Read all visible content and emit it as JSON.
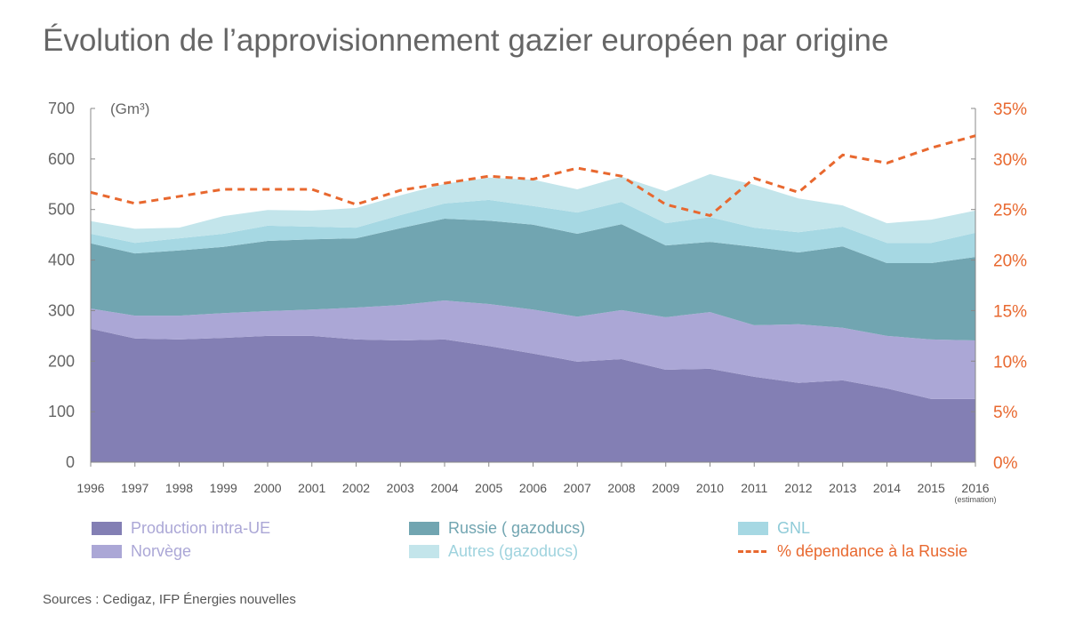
{
  "title": "Évolution de l’approvisionnement gazier européen par origine",
  "sources": "Sources : Cedigaz, IFP Énergies nouvelles",
  "chart_data": {
    "type": "area",
    "stacked": true,
    "title": "Évolution de l’approvisionnement gazier européen par origine",
    "ylabel": "(Gm³)",
    "ylim": [
      0,
      700
    ],
    "yticks": [
      "0",
      "100",
      "200",
      "300",
      "400",
      "500",
      "600",
      "700"
    ],
    "y2lim": [
      0,
      35
    ],
    "y2ticks": [
      "0%",
      "5%",
      "10%",
      "15%",
      "20%",
      "25%",
      "30%",
      "35%"
    ],
    "grid": false,
    "legend_position": "bottom",
    "categories": [
      "1996",
      "1997",
      "1998",
      "1999",
      "2000",
      "2001",
      "2002",
      "2003",
      "2004",
      "2005",
      "2006",
      "2007",
      "2008",
      "2009",
      "2010",
      "2011",
      "2012",
      "2013",
      "2014",
      "2015",
      "2016"
    ],
    "last_category_note": "(estimation)",
    "series": [
      {
        "name": "Production intra-UE",
        "color": "#837fb4",
        "values": [
          264,
          245,
          243,
          246,
          250,
          250,
          243,
          241,
          243,
          230,
          215,
          199,
          204,
          183,
          185,
          169,
          157,
          162,
          146,
          125,
          125
        ]
      },
      {
        "name": "Norvège",
        "color": "#aba7d6",
        "values": [
          40,
          45,
          47,
          49,
          49,
          52,
          63,
          70,
          77,
          83,
          87,
          89,
          97,
          104,
          112,
          102,
          116,
          104,
          104,
          118,
          116
        ]
      },
      {
        "name": "Russie ( gazoducs)",
        "color": "#71a5b1",
        "values": [
          129,
          123,
          129,
          131,
          139,
          139,
          137,
          152,
          162,
          165,
          168,
          164,
          170,
          142,
          139,
          155,
          142,
          161,
          144,
          151,
          165
        ]
      },
      {
        "name": "GNL",
        "color": "#a6d8e3",
        "values": [
          19,
          21,
          24,
          26,
          30,
          25,
          21,
          26,
          30,
          41,
          37,
          42,
          44,
          44,
          49,
          38,
          40,
          39,
          40,
          40,
          48
        ]
      },
      {
        "name": "Autres (gazoducs)",
        "color": "#c3e5eb",
        "values": [
          25,
          28,
          21,
          35,
          31,
          32,
          39,
          39,
          39,
          44,
          52,
          46,
          50,
          63,
          85,
          85,
          67,
          42,
          39,
          46,
          44
        ]
      }
    ],
    "line_series": {
      "name": "% dépendance à la Russie",
      "color": "#e8682f",
      "axis": "right",
      "unit": "%",
      "values": [
        26.7,
        25.6,
        26.3,
        27.0,
        27.0,
        27.0,
        25.5,
        26.9,
        27.6,
        28.3,
        28.0,
        29.1,
        28.3,
        25.5,
        24.4,
        28.1,
        26.7,
        30.4,
        29.6,
        31.1,
        32.3
      ]
    }
  }
}
